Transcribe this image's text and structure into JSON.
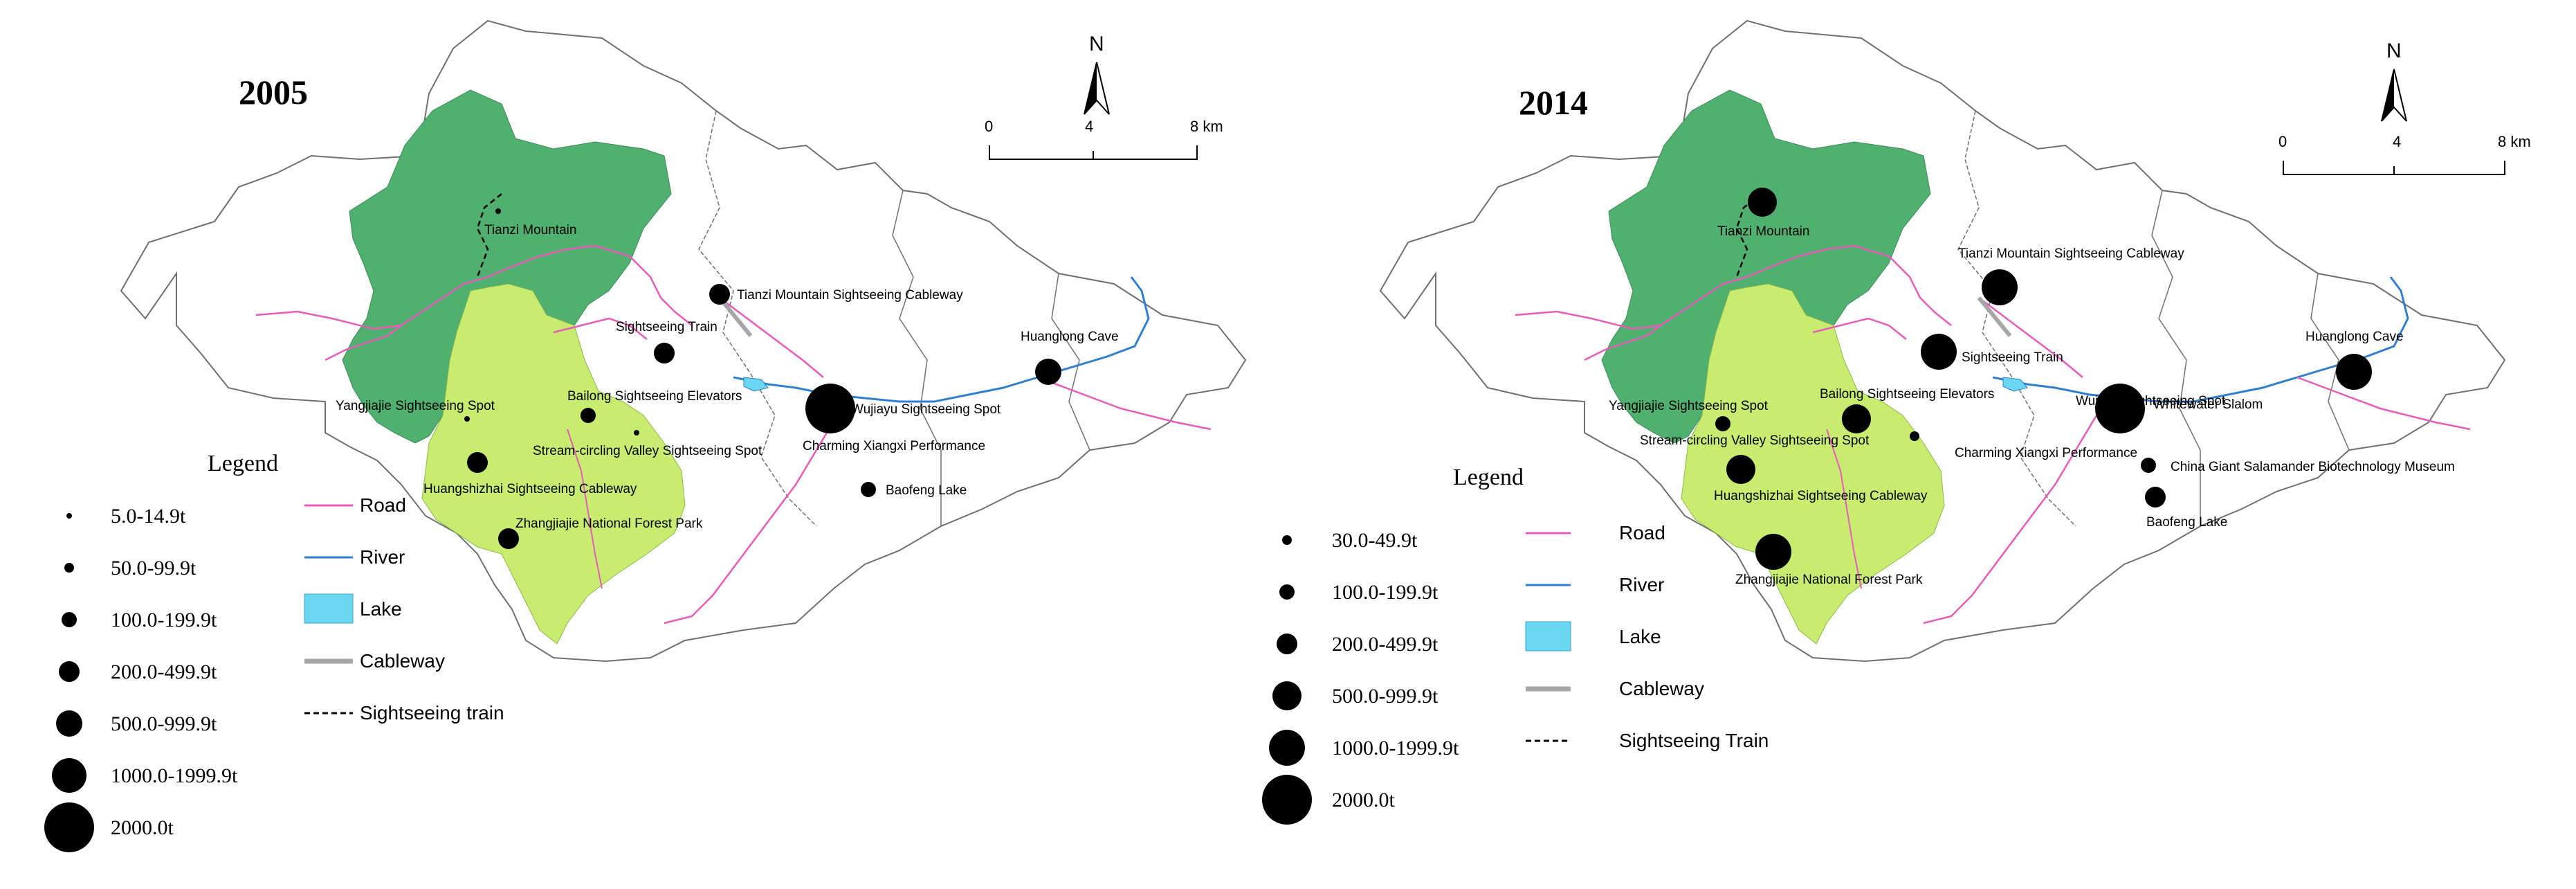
{
  "colors": {
    "forest_park": "#c7ec6f",
    "tianzi_area": "#4fb06f",
    "road": "#e85bb8",
    "river": "#2f7fd0",
    "lake": "#6ad6f0",
    "cableway": "#a6a6a6",
    "boundary": "#6f6f6f",
    "symbol": "#000000"
  },
  "maps": [
    {
      "year": "2005",
      "north": "N",
      "scale": {
        "labels": [
          "0",
          "4",
          "8 km"
        ]
      },
      "legend": {
        "title": "Legend",
        "sizes": [
          {
            "label": "5.0-14.9t"
          },
          {
            "label": "50.0-99.9t"
          },
          {
            "label": "100.0-199.9t"
          },
          {
            "label": "200.0-499.9t"
          },
          {
            "label": "500.0-999.9t"
          },
          {
            "label": "1000.0-1999.9t"
          },
          {
            "label": "2000.0t"
          }
        ],
        "lines": [
          {
            "label": "Road",
            "icon": "road-line"
          },
          {
            "label": "River",
            "icon": "river-line"
          },
          {
            "label": "Lake",
            "icon": "lake-swatch"
          },
          {
            "label": "Cableway",
            "icon": "cableway-line"
          },
          {
            "label": "Sightseeing train",
            "icon": "train-line"
          }
        ]
      },
      "spots": [
        {
          "label": "Tianzi Mountain",
          "class": 0
        },
        {
          "label": "Tianzi Mountain Sightseeing Cableway",
          "class": 3
        },
        {
          "label": "Sightseeing Train",
          "class": 3
        },
        {
          "label": "Bailong Sightseeing Elevators",
          "class": 2
        },
        {
          "label": "Yangjiajie Sightseeing Spot",
          "class": 0
        },
        {
          "label": "Stream-circling Valley Sightseeing Spot",
          "class": 0
        },
        {
          "label": "Huangshizhai Sightseeing Cableway",
          "class": 3
        },
        {
          "label": "Zhangjiajie National Forest Park",
          "class": 3
        },
        {
          "label": "Wujiayu Sightseeing Spot",
          "class": 6
        },
        {
          "label": "Charming Xiangxi Performance",
          "class": null
        },
        {
          "label": "Huanglong Cave",
          "class": 4
        },
        {
          "label": "Baofeng Lake",
          "class": 2
        }
      ]
    },
    {
      "year": "2014",
      "north": "N",
      "scale": {
        "labels": [
          "0",
          "4",
          "8 km"
        ]
      },
      "legend": {
        "title": "Legend",
        "sizes": [
          {
            "label": "30.0-49.9t"
          },
          {
            "label": "100.0-199.9t"
          },
          {
            "label": "200.0-499.9t"
          },
          {
            "label": "500.0-999.9t"
          },
          {
            "label": "1000.0-1999.9t"
          },
          {
            "label": "2000.0t"
          }
        ],
        "lines": [
          {
            "label": "Road",
            "icon": "road-line"
          },
          {
            "label": "River",
            "icon": "river-line"
          },
          {
            "label": "Lake",
            "icon": "lake-swatch"
          },
          {
            "label": "Cableway",
            "icon": "cableway-line"
          },
          {
            "label": "Sightseeing Train",
            "icon": "train-line"
          }
        ]
      },
      "spots": [
        {
          "label": "Tianzi Mountain",
          "class": 3
        },
        {
          "label": "Tianzi Mountain Sightseeing Cableway",
          "class": 4
        },
        {
          "label": "Sightseeing Train",
          "class": 4
        },
        {
          "label": "Bailong Sightseeing Elevators",
          "class": 3
        },
        {
          "label": "Yangjiajie Sightseeing Spot",
          "class": 1
        },
        {
          "label": "Stream-circling Valley Sightseeing Spot",
          "class": null
        },
        {
          "label": "Huangshizhai Sightseeing Cableway",
          "class": 3
        },
        {
          "label": "Zhangjiajie National Forest Park",
          "class": 4
        },
        {
          "label": "Charming Xiangxi Performance",
          "class": 0
        },
        {
          "label": "Wujiayu Sightseeing Spot",
          "class": 5
        },
        {
          "label": "Whitewater Slalom",
          "class": null
        },
        {
          "label": "Huanglong Cave",
          "class": 4
        },
        {
          "label": "China Giant Salamander Biotechnology Museum",
          "class": 1
        },
        {
          "label": "Baofeng Lake",
          "class": 2
        }
      ]
    }
  ]
}
